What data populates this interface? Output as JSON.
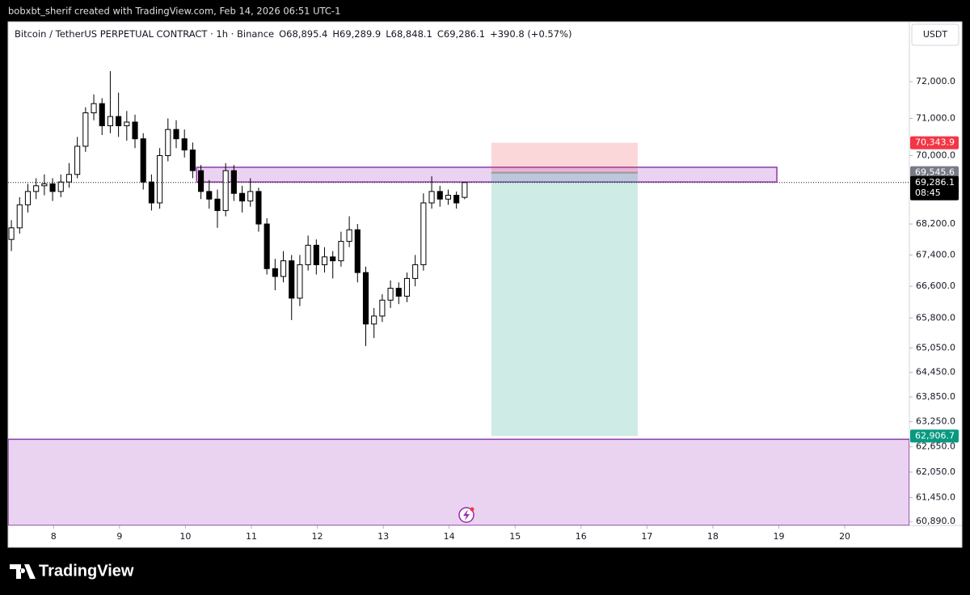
{
  "header": {
    "text": "bobxbt_sherif created with TradingView.com, Feb 14, 2026 06:51 UTC-1"
  },
  "chart_data": {
    "type": "candlestick",
    "legend": {
      "symbol": "Bitcoin / TetherUS PERPETUAL CONTRACT · 1h · Binance",
      "ohlc": [
        "O68,895.4",
        "H69,289.9",
        "L68,848.1",
        "C69,286.1",
        "+390.8 (+0.57%)"
      ]
    },
    "currency": "USDT",
    "x": [
      7.36,
      7.485,
      7.61,
      7.735,
      7.86,
      7.985,
      8.11,
      8.235,
      8.36,
      8.485,
      8.61,
      8.735,
      8.86,
      8.985,
      9.11,
      9.235,
      9.36,
      9.485,
      9.61,
      9.735,
      9.86,
      9.985,
      10.11,
      10.235,
      10.36,
      10.485,
      10.61,
      10.735,
      10.86,
      10.985,
      11.11,
      11.235,
      11.36,
      11.485,
      11.61,
      11.735,
      11.86,
      11.985,
      12.11,
      12.235,
      12.36,
      12.485,
      12.61,
      12.735,
      12.86,
      12.985,
      13.11,
      13.235,
      13.36,
      13.485,
      13.61,
      13.735,
      13.86,
      13.985,
      14.11,
      14.235
    ],
    "open": [
      67800,
      68100,
      68700,
      69050,
      69200,
      69250,
      69050,
      69300,
      69500,
      70250,
      71150,
      71400,
      70800,
      71050,
      70800,
      70900,
      70450,
      69300,
      68750,
      70000,
      70700,
      70450,
      70150,
      69600,
      69050,
      68850,
      68550,
      69600,
      69000,
      68800,
      69050,
      68200,
      67050,
      66850,
      67250,
      66300,
      67150,
      67650,
      67150,
      67350,
      67250,
      67750,
      68050,
      66950,
      65650,
      65850,
      66250,
      66550,
      66350,
      66800,
      67150,
      68750,
      69050,
      68850,
      68950,
      68895.4
    ],
    "high": [
      68300,
      68900,
      69250,
      69400,
      69500,
      69400,
      69500,
      69800,
      70500,
      71300,
      71650,
      71550,
      72290,
      71700,
      71200,
      71100,
      70600,
      69500,
      70200,
      71000,
      70950,
      70700,
      70350,
      69750,
      69350,
      69100,
      69800,
      69750,
      69200,
      69400,
      69150,
      68350,
      67300,
      67500,
      67400,
      67400,
      67900,
      67800,
      67600,
      67500,
      68000,
      68400,
      68200,
      67100,
      66050,
      66400,
      66750,
      66700,
      66950,
      67400,
      69000,
      69450,
      69200,
      69100,
      69050,
      69289.9
    ],
    "low": [
      67500,
      67950,
      68500,
      68850,
      68950,
      68800,
      68900,
      69150,
      69400,
      70100,
      70950,
      70550,
      70600,
      70500,
      70400,
      70200,
      69100,
      68550,
      68600,
      69850,
      70200,
      69950,
      69400,
      68850,
      68600,
      68100,
      68400,
      68800,
      68500,
      68650,
      68000,
      66900,
      66500,
      66700,
      65750,
      66100,
      67000,
      66900,
      66950,
      66800,
      67100,
      67600,
      66700,
      65100,
      65300,
      65700,
      66050,
      66150,
      66200,
      66600,
      67000,
      68600,
      68650,
      68700,
      68600,
      68848.1
    ],
    "close": [
      68100,
      68700,
      69050,
      69200,
      69250,
      69050,
      69300,
      69500,
      70250,
      71150,
      71400,
      70800,
      71050,
      70800,
      70900,
      70450,
      69300,
      68750,
      70000,
      70700,
      70450,
      70150,
      69600,
      69050,
      68850,
      68550,
      69600,
      69000,
      68800,
      69050,
      68200,
      67050,
      66850,
      67250,
      66300,
      67150,
      67650,
      67150,
      67350,
      67250,
      67750,
      68050,
      66950,
      65650,
      65850,
      66250,
      66550,
      66350,
      66800,
      67150,
      68750,
      69050,
      68850,
      68950,
      68750,
      69286.1
    ],
    "up_color": "#ffffff",
    "down_color": "#000000",
    "edge_color": "#000000",
    "xlim": [
      7.31,
      20.98
    ],
    "xticks": [
      8,
      9,
      10,
      11,
      12,
      13,
      14,
      15,
      16,
      17,
      18,
      19,
      20
    ],
    "ylim": [
      60800,
      73660
    ],
    "log_scale": true,
    "yticks": [
      {
        "value": 72000,
        "label": "72,000.0"
      },
      {
        "value": 71000,
        "label": "71,000.0"
      },
      {
        "value": 70000,
        "label": "70,000.0"
      },
      {
        "value": 68200,
        "label": "68,200.0"
      },
      {
        "value": 67400,
        "label": "67,400.0"
      },
      {
        "value": 66600,
        "label": "66,600.0"
      },
      {
        "value": 65800,
        "label": "65,800.0"
      },
      {
        "value": 65050,
        "label": "65,050.0"
      },
      {
        "value": 64450,
        "label": "64,450.0"
      },
      {
        "value": 63850,
        "label": "63,850.0"
      },
      {
        "value": 63250,
        "label": "63,250.0"
      },
      {
        "value": 62650,
        "label": "62,650.0"
      },
      {
        "value": 62050,
        "label": "62,050.0"
      },
      {
        "value": 61450,
        "label": "61,450.0"
      },
      {
        "value": 60890,
        "label": "60,890.0"
      }
    ],
    "last_price": {
      "value": 69286.1,
      "label": "69,286.1",
      "countdown": "08:45"
    },
    "position": {
      "x": [
        14.64,
        16.86
      ],
      "stop": {
        "value": 70343.9,
        "label": "70,343.9"
      },
      "entry": {
        "value": 69545.6,
        "label": "69,545.6"
      },
      "target": {
        "value": 62906.7,
        "label": "62,906.7"
      },
      "stop_color": "#f23645",
      "entry_color": "#787b86",
      "target_color": "#089981"
    },
    "zones": [
      {
        "x": [
          10.17,
          18.97
        ],
        "top": 69690,
        "bottom": 69300,
        "color": "#e9d3f1",
        "edge": "#8e3aa8"
      },
      {
        "x": [
          7.31,
          20.98
        ],
        "top": 62830,
        "bottom": 60800,
        "color": "#e9d3f1",
        "edge": "#8e3aa8"
      }
    ]
  },
  "footer": {
    "brand": "TradingView"
  }
}
